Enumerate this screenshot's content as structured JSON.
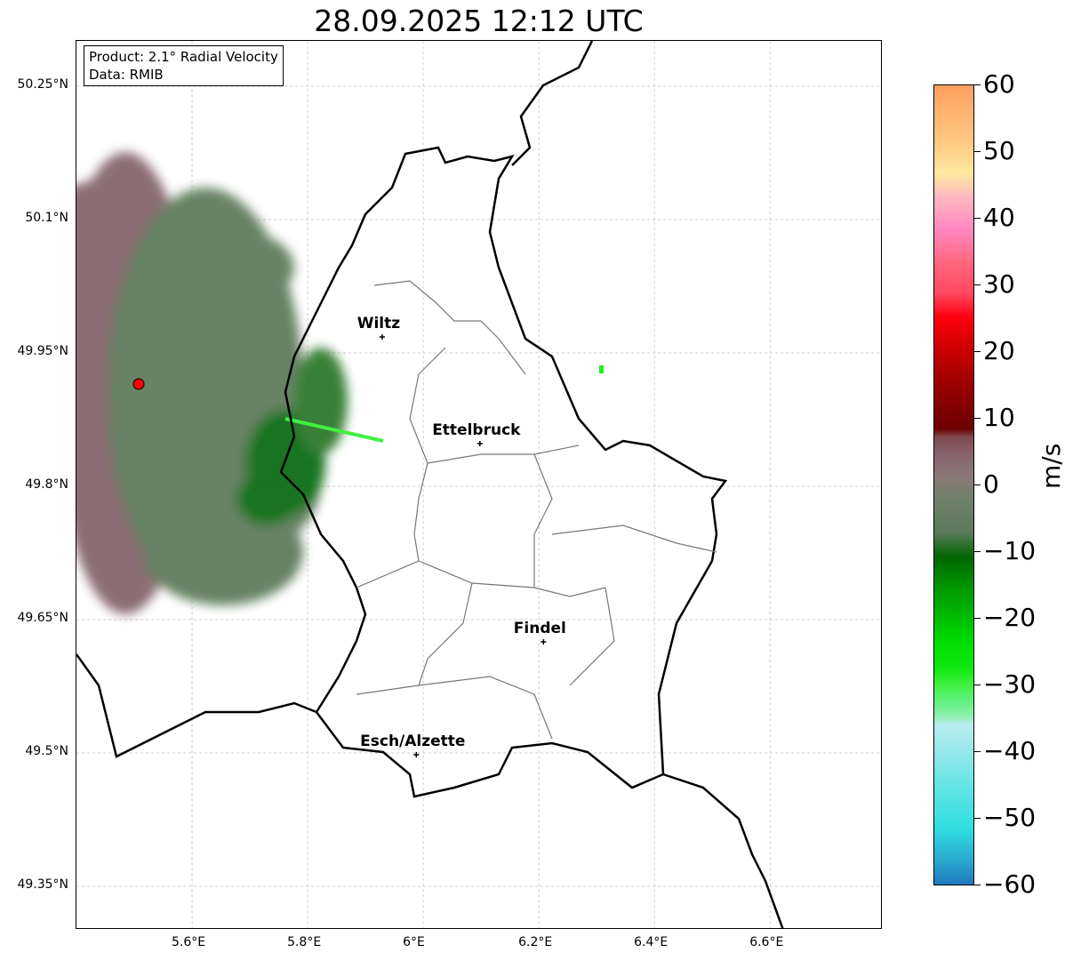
{
  "title": "28.09.2025 12:12 UTC",
  "info": {
    "product": "Product: 2.1° Radial Velocity",
    "data": "Data: RMIB"
  },
  "axes": {
    "lon_range": [
      5.4,
      6.795
    ],
    "lat_range": [
      49.301,
      50.301
    ],
    "x_ticks": [
      {
        "v": 5.6,
        "label": "5.6°E"
      },
      {
        "v": 5.8,
        "label": "5.8°E"
      },
      {
        "v": 6.0,
        "label": "6°E"
      },
      {
        "v": 6.2,
        "label": "6.2°E"
      },
      {
        "v": 6.4,
        "label": "6.4°E"
      },
      {
        "v": 6.6,
        "label": "6.6°E"
      }
    ],
    "y_ticks": [
      {
        "v": 50.25,
        "label": "50.25°N"
      },
      {
        "v": 50.1,
        "label": "50.1°N"
      },
      {
        "v": 49.95,
        "label": "49.95°N"
      },
      {
        "v": 49.8,
        "label": "49.8°N"
      },
      {
        "v": 49.65,
        "label": "49.65°N"
      },
      {
        "v": 49.5,
        "label": "49.5°N"
      },
      {
        "v": 49.35,
        "label": "49.35°N"
      }
    ]
  },
  "cities": [
    {
      "name": "Wiltz",
      "lon": 5.929,
      "lat": 49.968
    },
    {
      "name": "Ettelbruck",
      "lon": 6.098,
      "lat": 49.848
    },
    {
      "name": "Findel",
      "lon": 6.208,
      "lat": 49.625
    },
    {
      "name": "Esch/Alzette",
      "lon": 5.988,
      "lat": 49.498
    }
  ],
  "radar_site": {
    "lon": 5.508,
    "lat": 49.915,
    "color": "#ff0000"
  },
  "colorbar": {
    "unit": "m/s",
    "min": -60,
    "max": 60,
    "ticks": [
      "60",
      "50",
      "40",
      "30",
      "20",
      "10",
      "0",
      "−10",
      "−20",
      "−30",
      "−40",
      "−50",
      "−60"
    ]
  }
}
